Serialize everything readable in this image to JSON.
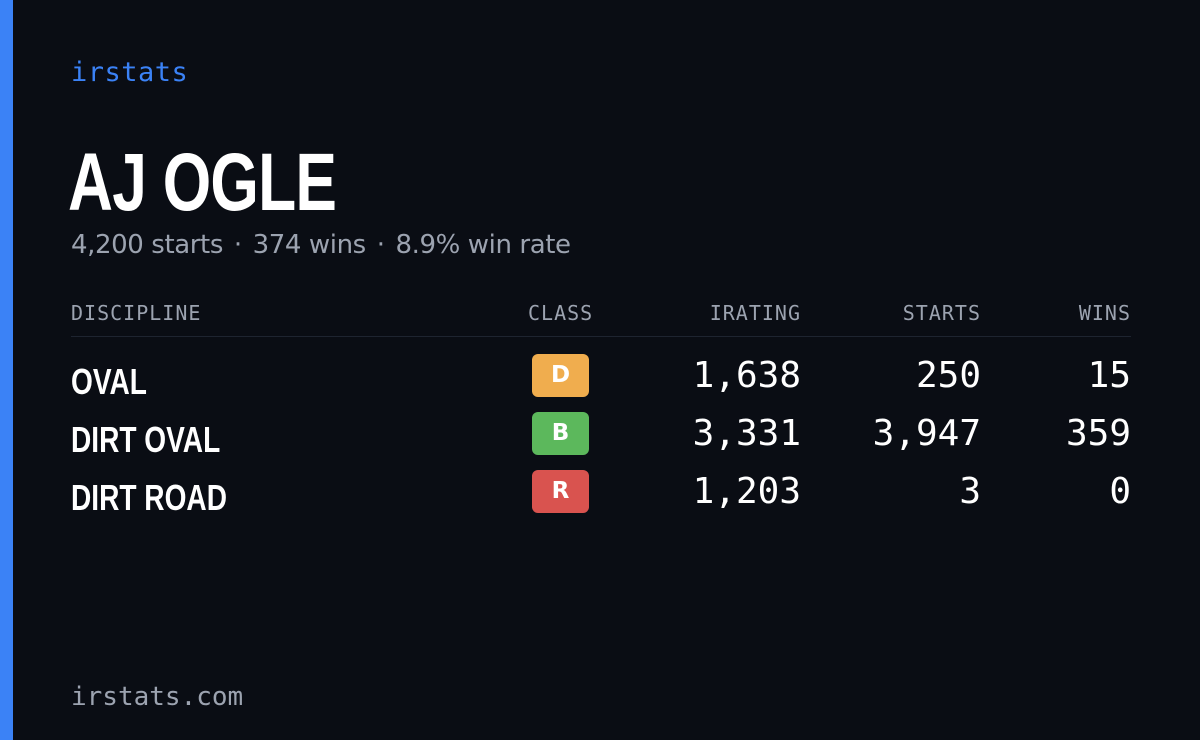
{
  "brand": "irstats",
  "driver": {
    "name": "AJ OGLE",
    "starts_text": "4,200 starts",
    "wins_text": "374 wins",
    "winrate_text": "8.9% win rate",
    "separator": "·"
  },
  "table": {
    "headers": {
      "discipline": "DISCIPLINE",
      "class": "CLASS",
      "irating": "IRATING",
      "starts": "STARTS",
      "wins": "WINS"
    },
    "rows": [
      {
        "discipline": "OVAL",
        "class": "D",
        "class_color": "#f0ad4e",
        "irating": "1,638",
        "starts": "250",
        "wins": "15"
      },
      {
        "discipline": "DIRT OVAL",
        "class": "B",
        "class_color": "#5cb85c",
        "irating": "3,331",
        "starts": "3,947",
        "wins": "359"
      },
      {
        "discipline": "DIRT ROAD",
        "class": "R",
        "class_color": "#d9534f",
        "irating": "1,203",
        "starts": "3",
        "wins": "0"
      }
    ]
  },
  "footer": {
    "url": "irstats.com"
  },
  "colors": {
    "accent": "#3b82f6",
    "background": "#0a0d14",
    "muted_text": "#9ca3b0"
  }
}
